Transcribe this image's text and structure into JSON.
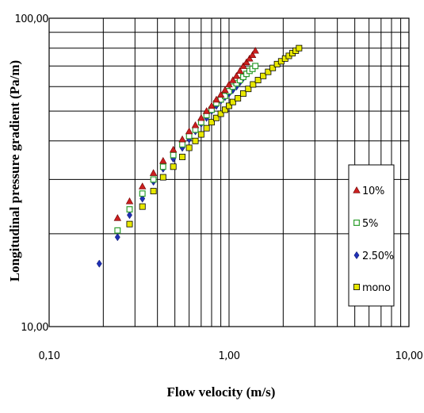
{
  "chart_data": {
    "type": "scatter",
    "title": "",
    "xlabel": "Flow velocity (m/s)",
    "ylabel": "Longitudinal pressure gradient  (Pa/m)",
    "xscale": "log",
    "yscale": "log",
    "xlim": [
      0.1,
      10
    ],
    "ylim": [
      10,
      100
    ],
    "x_tick_labels": [
      "0,10",
      "1,00",
      "10,00"
    ],
    "y_tick_labels": [
      "10,00",
      "100,00"
    ],
    "grid": true,
    "legend_position": "right",
    "series": [
      {
        "name": "10%",
        "marker": "triangle",
        "color": "#cc1f1f",
        "x": [
          0.24,
          0.28,
          0.33,
          0.38,
          0.43,
          0.49,
          0.55,
          0.6,
          0.65,
          0.7,
          0.75,
          0.8,
          0.85,
          0.9,
          0.95,
          1.0,
          1.05,
          1.1,
          1.15,
          1.2,
          1.25,
          1.3,
          1.35,
          1.4
        ],
        "y": [
          22.5,
          25.5,
          28.5,
          31.5,
          34.5,
          37.5,
          40.5,
          43.0,
          45.0,
          47.5,
          50.0,
          52.0,
          54.5,
          56.5,
          58.5,
          61.0,
          63.0,
          65.0,
          67.5,
          70.0,
          72.0,
          74.0,
          76.0,
          78.5
        ]
      },
      {
        "name": "5%",
        "marker": "square-open",
        "color": "#2e9e2e",
        "x": [
          0.24,
          0.28,
          0.33,
          0.38,
          0.43,
          0.49,
          0.55,
          0.6,
          0.65,
          0.7,
          0.75,
          0.8,
          0.85,
          0.9,
          0.95,
          1.0,
          1.05,
          1.1,
          1.15,
          1.2,
          1.25,
          1.3,
          1.35,
          1.4
        ],
        "y": [
          20.5,
          24.0,
          27.0,
          30.0,
          33.0,
          36.0,
          39.0,
          41.5,
          43.5,
          46.0,
          48.5,
          50.5,
          53.0,
          54.5,
          56.0,
          58.0,
          60.0,
          61.5,
          63.0,
          64.5,
          66.0,
          67.5,
          68.5,
          70.0
        ]
      },
      {
        "name": "2.50%",
        "marker": "diamond",
        "color": "#1f2fb5",
        "x": [
          0.19,
          0.24,
          0.28,
          0.33,
          0.38,
          0.43,
          0.49,
          0.55,
          0.6,
          0.65,
          0.7,
          0.75,
          0.8,
          0.85,
          0.9,
          0.95,
          1.0,
          1.05,
          1.1,
          1.15,
          1.2,
          1.25
        ],
        "y": [
          16.0,
          19.5,
          23.0,
          26.0,
          29.5,
          32.5,
          35.0,
          38.0,
          40.5,
          43.0,
          45.5,
          47.5,
          50.0,
          52.0,
          54.0,
          55.5,
          57.0,
          58.5,
          60.0,
          62.0,
          64.0,
          66.0
        ]
      },
      {
        "name": "mono",
        "marker": "square",
        "color": "#e8e800",
        "x": [
          0.28,
          0.33,
          0.38,
          0.43,
          0.49,
          0.55,
          0.6,
          0.65,
          0.7,
          0.75,
          0.8,
          0.85,
          0.9,
          0.95,
          1.0,
          1.05,
          1.12,
          1.2,
          1.28,
          1.36,
          1.45,
          1.55,
          1.65,
          1.75,
          1.85,
          1.95,
          2.05,
          2.15,
          2.25,
          2.35,
          2.45
        ],
        "y": [
          21.5,
          24.5,
          27.5,
          30.5,
          33.0,
          35.5,
          38.0,
          40.0,
          42.0,
          44.0,
          46.0,
          47.5,
          49.0,
          50.5,
          52.0,
          53.5,
          55.0,
          57.0,
          59.0,
          61.0,
          63.0,
          65.0,
          67.0,
          69.0,
          71.0,
          72.5,
          74.0,
          75.5,
          77.0,
          78.5,
          80.0
        ]
      }
    ]
  }
}
